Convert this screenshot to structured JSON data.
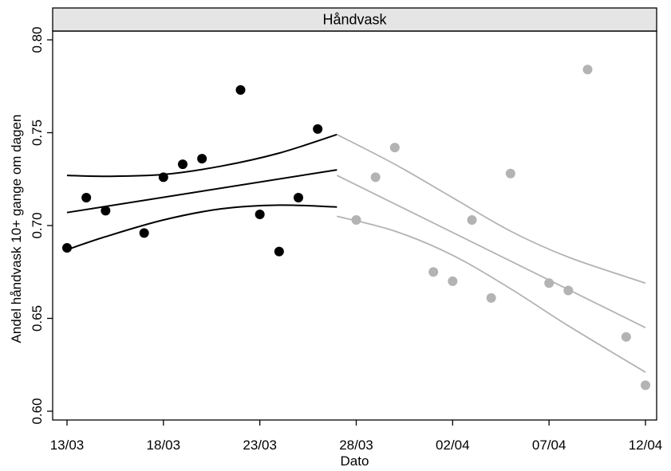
{
  "chart_data": {
    "type": "scatter",
    "panel_title": "Håndvask",
    "title": "",
    "xlabel": "Dato",
    "ylabel": "Andel håndvask 10+ gange om dagen",
    "x_range": [
      "2020-03-13",
      "2020-04-12"
    ],
    "ylim": [
      0.595,
      0.81
    ],
    "x_ticks": [
      "2020-03-13",
      "2020-03-18",
      "2020-03-23",
      "2020-03-28",
      "2020-04-02",
      "2020-04-07",
      "2020-04-12"
    ],
    "x_tick_labels": [
      "13/03",
      "18/03",
      "23/03",
      "28/03",
      "02/04",
      "07/04",
      "12/04"
    ],
    "y_ticks": [
      0.6,
      0.65,
      0.7,
      0.75,
      0.8
    ],
    "y_tick_labels": [
      "0.60",
      "0.65",
      "0.70",
      "0.75",
      "0.80"
    ],
    "grid": false,
    "colors": {
      "before": "#000000",
      "after": "#b3b3b3",
      "strip_fill": "#e5e5e5"
    },
    "series": [
      {
        "color": "#000000",
        "points": [
          {
            "x": "2020-03-13",
            "y": 0.688
          },
          {
            "x": "2020-03-14",
            "y": 0.715
          },
          {
            "x": "2020-03-15",
            "y": 0.708
          },
          {
            "x": "2020-03-17",
            "y": 0.696
          },
          {
            "x": "2020-03-18",
            "y": 0.726
          },
          {
            "x": "2020-03-19",
            "y": 0.733
          },
          {
            "x": "2020-03-20",
            "y": 0.736
          },
          {
            "x": "2020-03-22",
            "y": 0.773
          },
          {
            "x": "2020-03-23",
            "y": 0.706
          },
          {
            "x": "2020-03-24",
            "y": 0.686
          },
          {
            "x": "2020-03-25",
            "y": 0.715
          },
          {
            "x": "2020-03-26",
            "y": 0.752
          }
        ],
        "fit": [
          {
            "x": "2020-03-13",
            "y": 0.707
          },
          {
            "x": "2020-03-27",
            "y": 0.73
          }
        ],
        "ci_upper": [
          {
            "x": "2020-03-13",
            "y": 0.727
          },
          {
            "x": "2020-03-15",
            "y": 0.7265
          },
          {
            "x": "2020-03-18",
            "y": 0.7275
          },
          {
            "x": "2020-03-21",
            "y": 0.732
          },
          {
            "x": "2020-03-24",
            "y": 0.739
          },
          {
            "x": "2020-03-27",
            "y": 0.749
          }
        ],
        "ci_lower": [
          {
            "x": "2020-03-13",
            "y": 0.687
          },
          {
            "x": "2020-03-15",
            "y": 0.694
          },
          {
            "x": "2020-03-18",
            "y": 0.703
          },
          {
            "x": "2020-03-21",
            "y": 0.709
          },
          {
            "x": "2020-03-24",
            "y": 0.711
          },
          {
            "x": "2020-03-27",
            "y": 0.71
          }
        ]
      },
      {
        "color": "#b3b3b3",
        "points": [
          {
            "x": "2020-03-28",
            "y": 0.703
          },
          {
            "x": "2020-03-29",
            "y": 0.726
          },
          {
            "x": "2020-03-30",
            "y": 0.742
          },
          {
            "x": "2020-04-01",
            "y": 0.675
          },
          {
            "x": "2020-04-02",
            "y": 0.67
          },
          {
            "x": "2020-04-03",
            "y": 0.703
          },
          {
            "x": "2020-04-04",
            "y": 0.661
          },
          {
            "x": "2020-04-05",
            "y": 0.728
          },
          {
            "x": "2020-04-07",
            "y": 0.669
          },
          {
            "x": "2020-04-08",
            "y": 0.665
          },
          {
            "x": "2020-04-09",
            "y": 0.784
          },
          {
            "x": "2020-04-11",
            "y": 0.64
          },
          {
            "x": "2020-04-12",
            "y": 0.614
          }
        ],
        "fit": [
          {
            "x": "2020-03-27",
            "y": 0.727
          },
          {
            "x": "2020-04-12",
            "y": 0.645
          }
        ],
        "ci_upper": [
          {
            "x": "2020-03-27",
            "y": 0.749
          },
          {
            "x": "2020-03-30",
            "y": 0.733
          },
          {
            "x": "2020-04-02",
            "y": 0.715
          },
          {
            "x": "2020-04-05",
            "y": 0.697
          },
          {
            "x": "2020-04-08",
            "y": 0.683
          },
          {
            "x": "2020-04-12",
            "y": 0.669
          }
        ],
        "ci_lower": [
          {
            "x": "2020-03-27",
            "y": 0.705
          },
          {
            "x": "2020-03-30",
            "y": 0.697
          },
          {
            "x": "2020-04-02",
            "y": 0.684
          },
          {
            "x": "2020-04-05",
            "y": 0.666
          },
          {
            "x": "2020-04-08",
            "y": 0.646
          },
          {
            "x": "2020-04-12",
            "y": 0.621
          }
        ]
      }
    ]
  }
}
